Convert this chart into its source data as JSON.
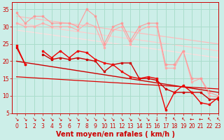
{
  "background_color": "#cceee8",
  "grid_color": "#aaddcc",
  "xlim": [
    -0.5,
    23
  ],
  "ylim": [
    5,
    37
  ],
  "yticks": [
    5,
    10,
    15,
    20,
    25,
    30,
    35
  ],
  "xticks": [
    0,
    1,
    2,
    3,
    4,
    5,
    6,
    7,
    8,
    9,
    10,
    11,
    12,
    13,
    14,
    15,
    16,
    17,
    18,
    19,
    20,
    21,
    22,
    23
  ],
  "xlabel": "Vent moyen/en rafales ( km/h )",
  "xlabel_color": "#cc0000",
  "xlabel_fontsize": 7.0,
  "tick_color": "#cc0000",
  "tick_fontsize": 5.5,
  "lines": [
    {
      "x": [
        0,
        1,
        2,
        3,
        4,
        5,
        6,
        7,
        8,
        9,
        10,
        11,
        12,
        13,
        14,
        15,
        16,
        17,
        18,
        19,
        20,
        21,
        22,
        23
      ],
      "y": [
        34,
        31,
        33,
        33,
        31,
        31,
        31,
        30,
        35,
        33,
        25,
        30,
        31,
        26,
        30,
        31,
        31,
        19,
        19,
        23,
        15,
        15,
        11,
        10
      ],
      "color": "#ff9999",
      "lw": 0.8,
      "marker": "s",
      "ms": 1.8,
      "zorder": 3
    },
    {
      "x": [
        0,
        23
      ],
      "y": [
        33,
        25
      ],
      "color": "#ffbbbb",
      "lw": 0.9,
      "marker": null,
      "ms": 0,
      "zorder": 1
    },
    {
      "x": [
        0,
        23
      ],
      "y": [
        31,
        23
      ],
      "color": "#ffcccc",
      "lw": 0.9,
      "marker": null,
      "ms": 0,
      "zorder": 1
    },
    {
      "x": [
        0,
        23
      ],
      "y": [
        29,
        21
      ],
      "color": "#ffdddd",
      "lw": 0.9,
      "marker": null,
      "ms": 0,
      "zorder": 1
    },
    {
      "x": [
        0,
        1,
        2,
        3,
        4,
        5,
        6,
        7,
        8,
        9,
        10,
        11,
        12,
        13,
        14,
        15,
        16,
        17,
        18,
        19,
        20,
        21,
        22,
        23
      ],
      "y": [
        31,
        30,
        30,
        31,
        30,
        30,
        30,
        29,
        31,
        30,
        24,
        29,
        30,
        25,
        29,
        30,
        30,
        18,
        18,
        23,
        14,
        15,
        10,
        9.5
      ],
      "color": "#ffaaaa",
      "lw": 0.8,
      "marker": "s",
      "ms": 1.5,
      "zorder": 2
    },
    {
      "x": [
        0,
        1,
        2,
        3,
        4,
        5,
        6,
        7,
        8,
        9,
        10,
        11,
        12,
        13,
        14,
        15,
        16,
        17,
        18,
        19,
        20,
        21,
        22,
        23
      ],
      "y": [
        24.5,
        19,
        null,
        23,
        21,
        23,
        21,
        23,
        22.5,
        20.5,
        19.5,
        19,
        17,
        15.5,
        15,
        15.5,
        15,
        6,
        11,
        13,
        11,
        8,
        7.5,
        9.5
      ],
      "color": "#ee0000",
      "lw": 1.0,
      "marker": "s",
      "ms": 2.0,
      "zorder": 5
    },
    {
      "x": [
        0,
        1,
        2,
        3,
        4,
        5,
        6,
        7,
        8,
        9,
        10,
        11,
        12,
        13,
        14,
        15,
        16,
        17,
        18,
        19,
        20,
        21,
        22,
        23
      ],
      "y": [
        24,
        19,
        null,
        22,
        20.5,
        21,
        20.5,
        21,
        20.5,
        20,
        17,
        19,
        19.5,
        19.5,
        15,
        15,
        14.5,
        12,
        11,
        11,
        11,
        11,
        9,
        9
      ],
      "color": "#cc0000",
      "lw": 1.0,
      "marker": "s",
      "ms": 2.0,
      "zorder": 4
    },
    {
      "x": [
        0,
        23
      ],
      "y": [
        20,
        11
      ],
      "color": "#cc0000",
      "lw": 1.0,
      "marker": null,
      "ms": 0,
      "zorder": 2
    },
    {
      "x": [
        0,
        23
      ],
      "y": [
        15.5,
        12
      ],
      "color": "#dd0000",
      "lw": 0.9,
      "marker": null,
      "ms": 0,
      "zorder": 2
    }
  ],
  "arrow_symbols": [
    "↘",
    "↘",
    "↘",
    "↘",
    "↘",
    "↘",
    "↘",
    "↘",
    "↘",
    "↘",
    "↘",
    "↘",
    "↘",
    "↘",
    "↘",
    "↘",
    "↓",
    "↑",
    "↖",
    "↖",
    "←",
    "←",
    "↖",
    "↖"
  ]
}
